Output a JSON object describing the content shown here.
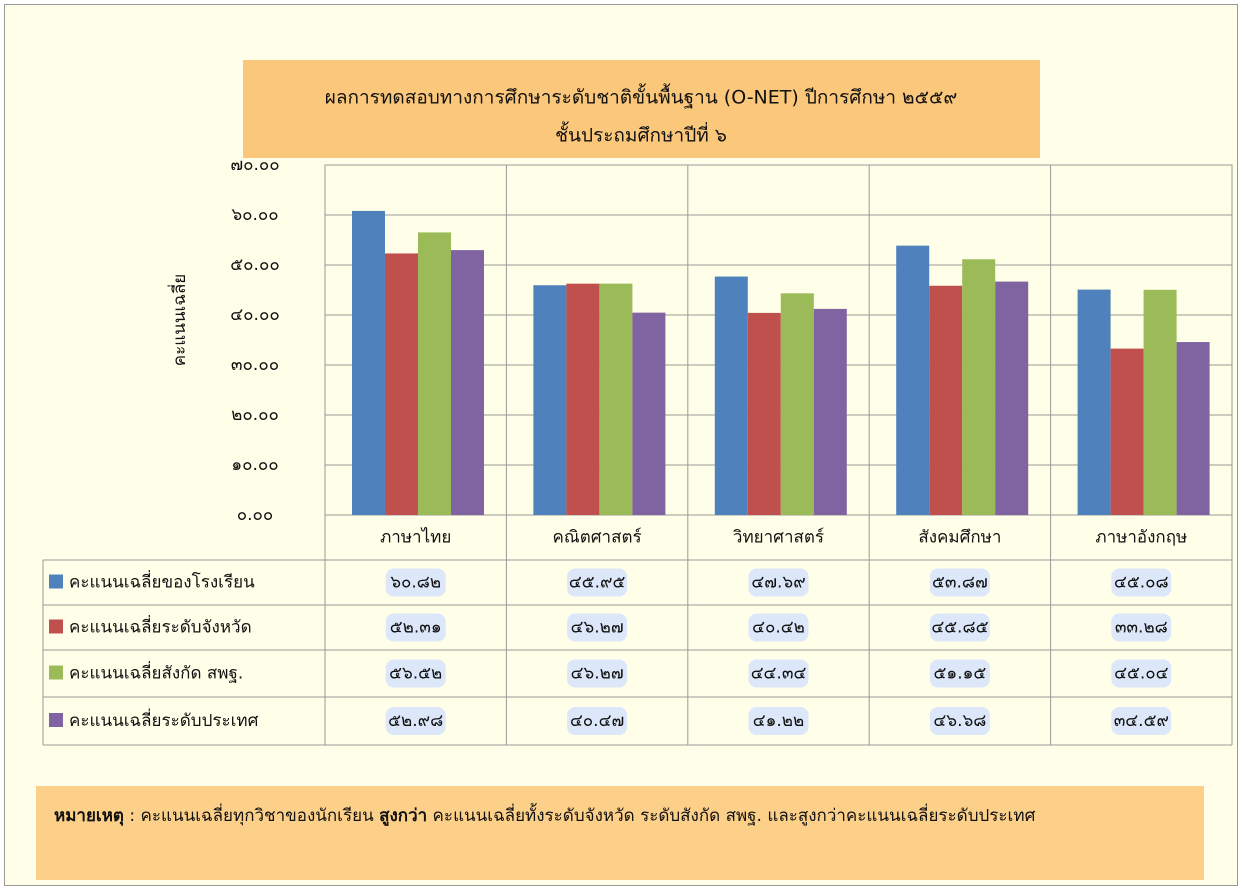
{
  "chart_data": {
    "type": "bar",
    "title": "ผลการทดสอบทางการศึกษาระดับชาติขั้นพื้นฐาน (O-NET)  ปีการศึกษา ๒๕๕๙",
    "subtitle": "ชั้นประถมศึกษาปีที่ ๖",
    "y_label": "คะแนนเฉลี่ย",
    "categories": [
      "ภาษาไทย",
      "คณิตศาสตร์",
      "วิทยาศาสตร์",
      "สังคมศึกษา",
      "ภาษาอังกฤษ"
    ],
    "series": [
      {
        "name": "คะแนนเฉลี่ยของโรงเรียน",
        "color": "#4f81bd",
        "values": [
          60.82,
          45.95,
          47.69,
          53.87,
          45.08
        ],
        "value_labels": [
          "๖๐.๘๒",
          "๔๕.๙๕",
          "๔๗.๖๙",
          "๕๓.๘๗",
          "๔๕.๐๘"
        ]
      },
      {
        "name": "คะแนนเฉลี่ยระดับจังหวัด",
        "color": "#c0504d",
        "values": [
          52.31,
          46.27,
          40.42,
          45.85,
          33.28
        ],
        "value_labels": [
          "๕๒.๓๑",
          "๔๖.๒๗",
          "๔๐.๔๒",
          "๔๕.๘๕",
          "๓๓.๒๘"
        ]
      },
      {
        "name": "คะแนนเฉลี่ยสังกัด สพฐ.",
        "color": "#9bbb59",
        "values": [
          56.52,
          46.27,
          44.34,
          51.15,
          45.04
        ],
        "value_labels": [
          "๕๖.๕๒",
          "๔๖.๒๗",
          "๔๔.๓๔",
          "๕๑.๑๕",
          "๔๕.๐๔"
        ]
      },
      {
        "name": "คะแนนเฉลี่ยระดับประเทศ",
        "color": "#8064a2",
        "values": [
          52.98,
          40.47,
          41.22,
          46.68,
          34.59
        ],
        "value_labels": [
          "๕๒.๙๘",
          "๔๐.๔๗",
          "๔๑.๒๒",
          "๔๖.๖๘",
          "๓๔.๕๙"
        ]
      }
    ],
    "ylim": [
      0,
      70
    ],
    "yticks": [
      {
        "value": 0,
        "label": "๐.๐๐"
      },
      {
        "value": 10,
        "label": "๑๐.๐๐"
      },
      {
        "value": 20,
        "label": "๒๐.๐๐"
      },
      {
        "value": 30,
        "label": "๓๐.๐๐"
      },
      {
        "value": 40,
        "label": "๔๐.๐๐"
      },
      {
        "value": 50,
        "label": "๕๐.๐๐"
      },
      {
        "value": 60,
        "label": "๖๐.๐๐"
      },
      {
        "value": 70,
        "label": "๗๐.๐๐"
      }
    ],
    "grid": true
  },
  "note": {
    "label": "หมายเหตุ",
    "text1": " : คะแนนเฉลี่ยทุกวิชาของนักเรียน ",
    "emphasis": "สูงกว่า",
    "text2": " คะแนนเฉลี่ยทั้งระดับจังหวัด  ระดับสังกัด สพฐ.  และสูงกว่าคะแนนเฉลี่ยระดับประเทศ"
  }
}
